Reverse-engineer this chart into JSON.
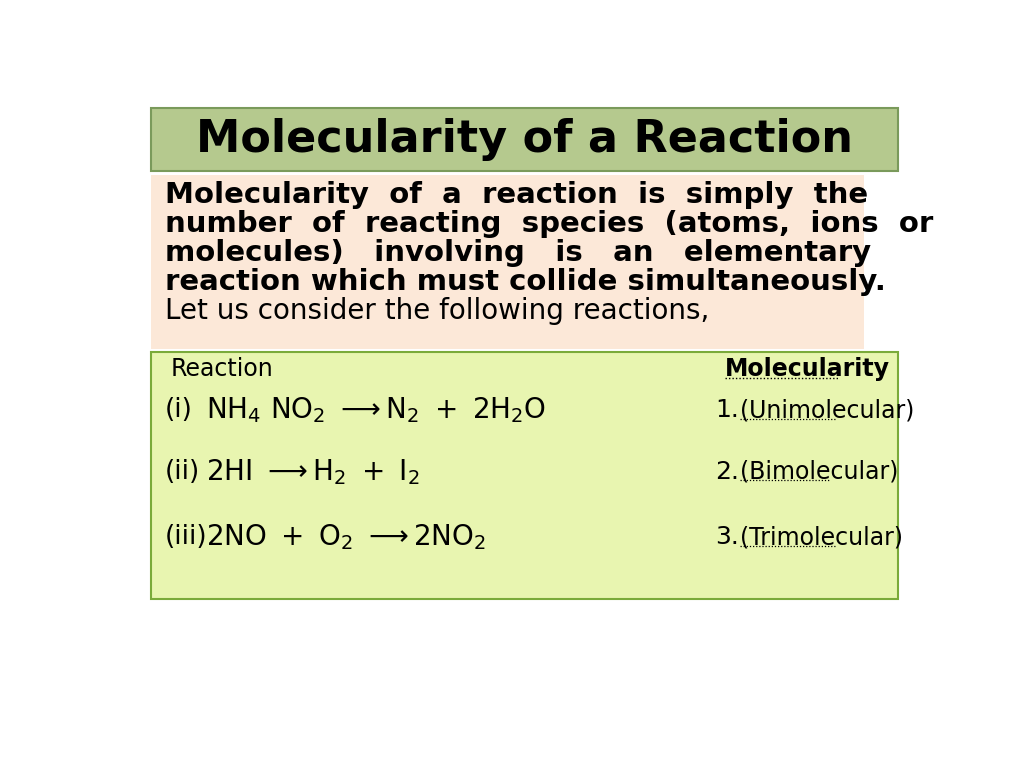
{
  "title": "Molecularity of a Reaction",
  "title_bg": "#b5c98e",
  "title_border": "#7a9a5b",
  "page_bg": "#ffffff",
  "bold_text_bg": "#fce8d8",
  "normal_text": "Let us consider the following reactions,",
  "table_bg": "#e8f5b0",
  "table_border": "#7aaa3a",
  "col1_header": "Reaction",
  "col2_header": "Molecularity",
  "bold_lines": [
    "Molecularity  of  a  reaction  is  simply  the",
    "number  of  reacting  species  (atoms,  ions  or",
    "molecules)   involving   is   an   elementary",
    "reaction which must collide simultaneously."
  ]
}
